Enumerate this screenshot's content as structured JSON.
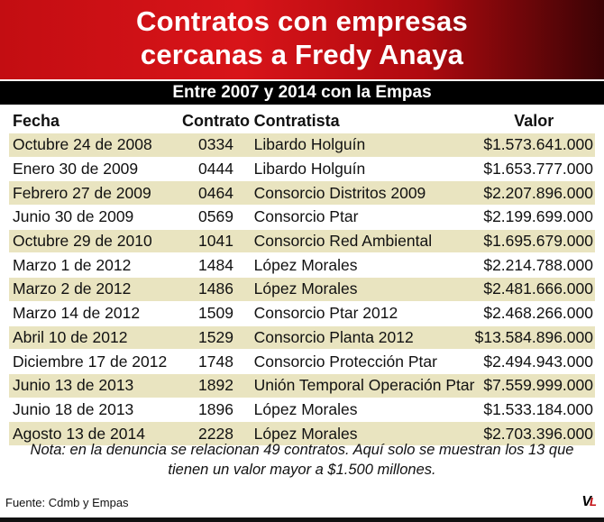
{
  "title": {
    "line1": "Contratos con empresas",
    "line2": "cercanas a Fredy Anaya"
  },
  "subtitle": "Entre 2007 y 2014 con la Empas",
  "table": {
    "headers": {
      "date": "Fecha",
      "contract": "Contrato",
      "contractor": "Contratista",
      "value": "Valor"
    },
    "rows": [
      {
        "date": "Octubre 24 de 2008",
        "contract": "0334",
        "contractor": "Libardo Holguín",
        "value": "$1.573.641.000"
      },
      {
        "date": "Enero 30 de 2009",
        "contract": "0444",
        "contractor": "Libardo Holguín",
        "value": "$1.653.777.000"
      },
      {
        "date": "Febrero 27 de 2009",
        "contract": "0464",
        "contractor": "Consorcio Distritos 2009",
        "value": "$2.207.896.000"
      },
      {
        "date": "Junio 30 de 2009",
        "contract": "0569",
        "contractor": "Consorcio Ptar",
        "value": "$2.199.699.000"
      },
      {
        "date": "Octubre 29 de 2010",
        "contract": "1041",
        "contractor": "Consorcio Red Ambiental",
        "value": "$1.695.679.000"
      },
      {
        "date": "Marzo 1 de 2012",
        "contract": "1484",
        "contractor": "López Morales",
        "value": "$2.214.788.000"
      },
      {
        "date": "Marzo 2 de 2012",
        "contract": "1486",
        "contractor": "López Morales",
        "value": "$2.481.666.000"
      },
      {
        "date": "Marzo 14 de 2012",
        "contract": "1509",
        "contractor": "Consorcio Ptar 2012",
        "value": "$2.468.266.000"
      },
      {
        "date": "Abril 10 de 2012",
        "contract": "1529",
        "contractor": "Consorcio Planta 2012",
        "value": "$13.584.896.000"
      },
      {
        "date": "Diciembre 17 de 2012",
        "contract": "1748",
        "contractor": "Consorcio Protección Ptar",
        "value": "$2.494.943.000"
      },
      {
        "date": "Junio 13 de 2013",
        "contract": "1892",
        "contractor": "Unión Temporal Operación Ptar",
        "value": "$7.559.999.000"
      },
      {
        "date": "Junio 18 de 2013",
        "contract": "1896",
        "contractor": "López Morales",
        "value": "$1.533.184.000"
      },
      {
        "date": "Agosto 13 de 2014",
        "contract": "2228",
        "contractor": "López Morales",
        "value": "$2.703.396.000"
      }
    ]
  },
  "note": {
    "line1": "Nota: en la denuncia se relacionan 49 contratos. Aquí solo se muestran los 13 que",
    "line2": "tienen un valor mayor a $1.500 millones."
  },
  "source": "Fuente: Cdmb y Empas",
  "logo": {
    "v": "V",
    "l": "L"
  },
  "colors": {
    "header_red": "#d81419",
    "stripe": "#e9e4c0",
    "bar": "#000000"
  }
}
